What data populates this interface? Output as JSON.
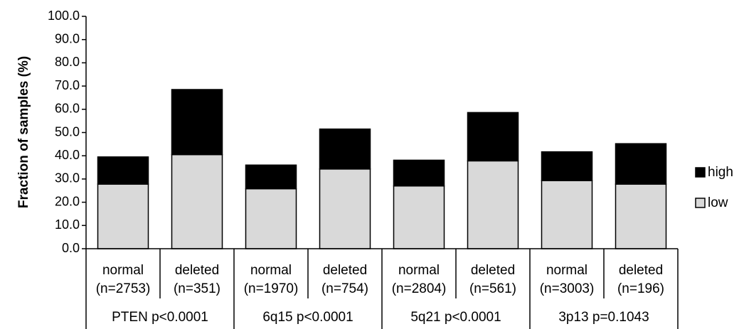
{
  "chart_data": {
    "type": "bar",
    "stacked": true,
    "ylabel": "Fraction of samples (%)",
    "ylim": [
      0,
      100
    ],
    "yticks": [
      "0.0",
      "10.0",
      "20.0",
      "30.0",
      "40.0",
      "50.0",
      "60.0",
      "70.0",
      "80.0",
      "90.0",
      "100.0"
    ],
    "categories": [
      {
        "status": "normal",
        "n": "(n=2753)",
        "group": "PTEN p<0.0001"
      },
      {
        "status": "deleted",
        "n": "(n=351)",
        "group": "PTEN p<0.0001"
      },
      {
        "status": "normal",
        "n": "(n=1970)",
        "group": "6q15 p<0.0001"
      },
      {
        "status": "deleted",
        "n": "(n=754)",
        "group": "6q15 p<0.0001"
      },
      {
        "status": "normal",
        "n": "(n=2804)",
        "group": "5q21 p<0.0001"
      },
      {
        "status": "deleted",
        "n": "(n=561)",
        "group": "5q21 p<0.0001"
      },
      {
        "status": "normal",
        "n": "(n=3003)",
        "group": "3p13 p=0.1043"
      },
      {
        "status": "deleted",
        "n": "(n=196)",
        "group": "3p13 p=0.1043"
      }
    ],
    "groups": [
      "PTEN p<0.0001",
      "6q15 p<0.0001",
      "5q21 p<0.0001",
      "3p13 p=0.1043"
    ],
    "series": [
      {
        "name": "low",
        "color": "#d9d9d9",
        "values": [
          27.8,
          40.5,
          25.8,
          34.3,
          27.0,
          37.8,
          29.3,
          27.8
        ]
      },
      {
        "name": "high",
        "color": "#000000",
        "values": [
          11.7,
          28.0,
          10.2,
          17.2,
          11.1,
          20.8,
          12.4,
          17.4
        ]
      }
    ],
    "legend": {
      "placement": "right",
      "order": [
        "high",
        "low"
      ]
    },
    "grid": false
  }
}
